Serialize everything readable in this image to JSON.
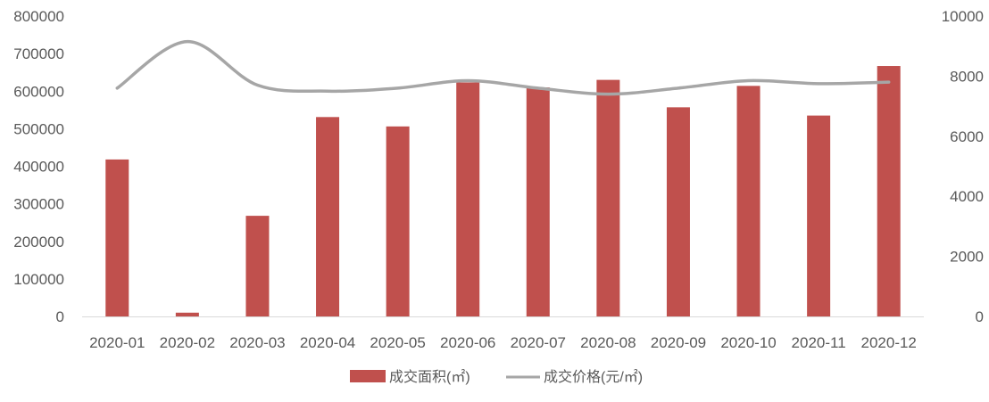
{
  "chart_data": {
    "type": "bar",
    "categories": [
      "2020-01",
      "2020-02",
      "2020-03",
      "2020-04",
      "2020-05",
      "2020-06",
      "2020-07",
      "2020-08",
      "2020-09",
      "2020-10",
      "2020-11",
      "2020-12"
    ],
    "series": [
      {
        "name": "成交面积(㎡)",
        "type": "bar",
        "axis": "left",
        "color": "#c0504d",
        "values": [
          418000,
          10000,
          268000,
          531000,
          506000,
          623000,
          610000,
          630000,
          557000,
          614000,
          535000,
          667000
        ]
      },
      {
        "name": "成交价格(元/㎡)",
        "type": "line",
        "axis": "right",
        "color": "#a6a6a6",
        "values": [
          7600,
          9150,
          7700,
          7500,
          7600,
          7850,
          7600,
          7400,
          7600,
          7850,
          7750,
          7800
        ]
      }
    ],
    "y_left": {
      "ylim": [
        0,
        800000
      ],
      "ticks": [
        "0",
        "100000",
        "200000",
        "300000",
        "400000",
        "500000",
        "600000",
        "700000",
        "800000"
      ]
    },
    "y_right": {
      "ylim": [
        0,
        10000
      ],
      "ticks": [
        "0",
        "2000",
        "4000",
        "6000",
        "8000",
        "10000"
      ]
    },
    "title": "",
    "xlabel": "",
    "ylabel": "",
    "legend_position": "bottom",
    "grid": false
  }
}
